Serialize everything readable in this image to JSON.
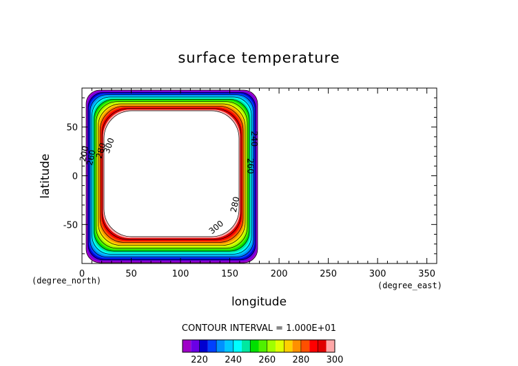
{
  "chart_data": {
    "type": "contour",
    "title": "surface temperature",
    "xlabel": "longitude",
    "ylabel": "latitude",
    "x_units": "(degree_east)",
    "y_units": "(degree_north)",
    "xlim": [
      0,
      360
    ],
    "ylim": [
      -90,
      90
    ],
    "x_ticks": [
      0,
      50,
      100,
      150,
      200,
      250,
      300,
      350
    ],
    "y_ticks": [
      -50,
      0,
      50
    ],
    "contour_interval_label": "CONTOUR INTERVAL = 1.000E+01",
    "color_levels": [
      {
        "min": 210,
        "max": 215,
        "color": "#9f00c8"
      },
      {
        "min": 215,
        "max": 220,
        "color": "#6a00e6"
      },
      {
        "min": 220,
        "max": 225,
        "color": "#0000d0"
      },
      {
        "min": 225,
        "max": 230,
        "color": "#0040ff"
      },
      {
        "min": 230,
        "max": 235,
        "color": "#0090ff"
      },
      {
        "min": 235,
        "max": 240,
        "color": "#00c8ff"
      },
      {
        "min": 240,
        "max": 245,
        "color": "#00ffff"
      },
      {
        "min": 245,
        "max": 250,
        "color": "#00e8a0"
      },
      {
        "min": 250,
        "max": 255,
        "color": "#00e000"
      },
      {
        "min": 255,
        "max": 260,
        "color": "#50f000"
      },
      {
        "min": 260,
        "max": 265,
        "color": "#a0ff00"
      },
      {
        "min": 265,
        "max": 270,
        "color": "#e0ff00"
      },
      {
        "min": 270,
        "max": 275,
        "color": "#ffd000"
      },
      {
        "min": 275,
        "max": 280,
        "color": "#ff9000"
      },
      {
        "min": 280,
        "max": 285,
        "color": "#ff5000"
      },
      {
        "min": 285,
        "max": 290,
        "color": "#ff0000"
      },
      {
        "min": 290,
        "max": 295,
        "color": "#e00000"
      },
      {
        "min": 295,
        "max": 300,
        "color": "#ffa8a8"
      }
    ],
    "colorbar_labels": [
      "220",
      "240",
      "260",
      "280",
      "300"
    ],
    "contour_labels": [
      "200",
      "260",
      "280",
      "300",
      "300",
      "280",
      "260",
      "240"
    ],
    "grid": false
  }
}
